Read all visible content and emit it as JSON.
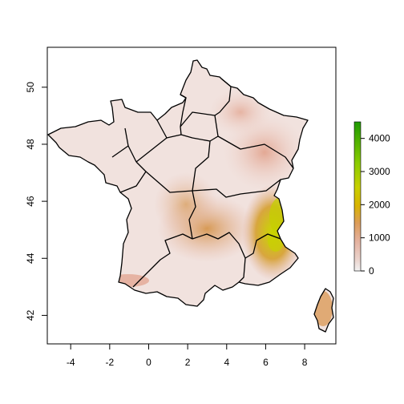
{
  "map": {
    "type": "raster-elevation-map",
    "x_ticks": [
      "-4",
      "-2",
      "0",
      "2",
      "4",
      "6",
      "8"
    ],
    "y_ticks": [
      "42",
      "44",
      "46",
      "48",
      "50"
    ],
    "x_range": [
      -5.2,
      9.6
    ],
    "y_range": [
      41.0,
      51.4
    ]
  },
  "legend": {
    "ticks": [
      "0",
      "1000",
      "2000",
      "3000",
      "4000"
    ],
    "range": [
      0,
      4500
    ],
    "colors": [
      "#f2f2f2",
      "#e8c4b8",
      "#e0a480",
      "#d89a4a",
      "#d4b800",
      "#b8d400",
      "#5cc000",
      "#1e9a00"
    ]
  },
  "colors": {
    "lowland": "#f1e2de",
    "midland": "#e6b7a7",
    "upland": "#d8975c",
    "high": "#c8cf00",
    "border": "#000000"
  }
}
